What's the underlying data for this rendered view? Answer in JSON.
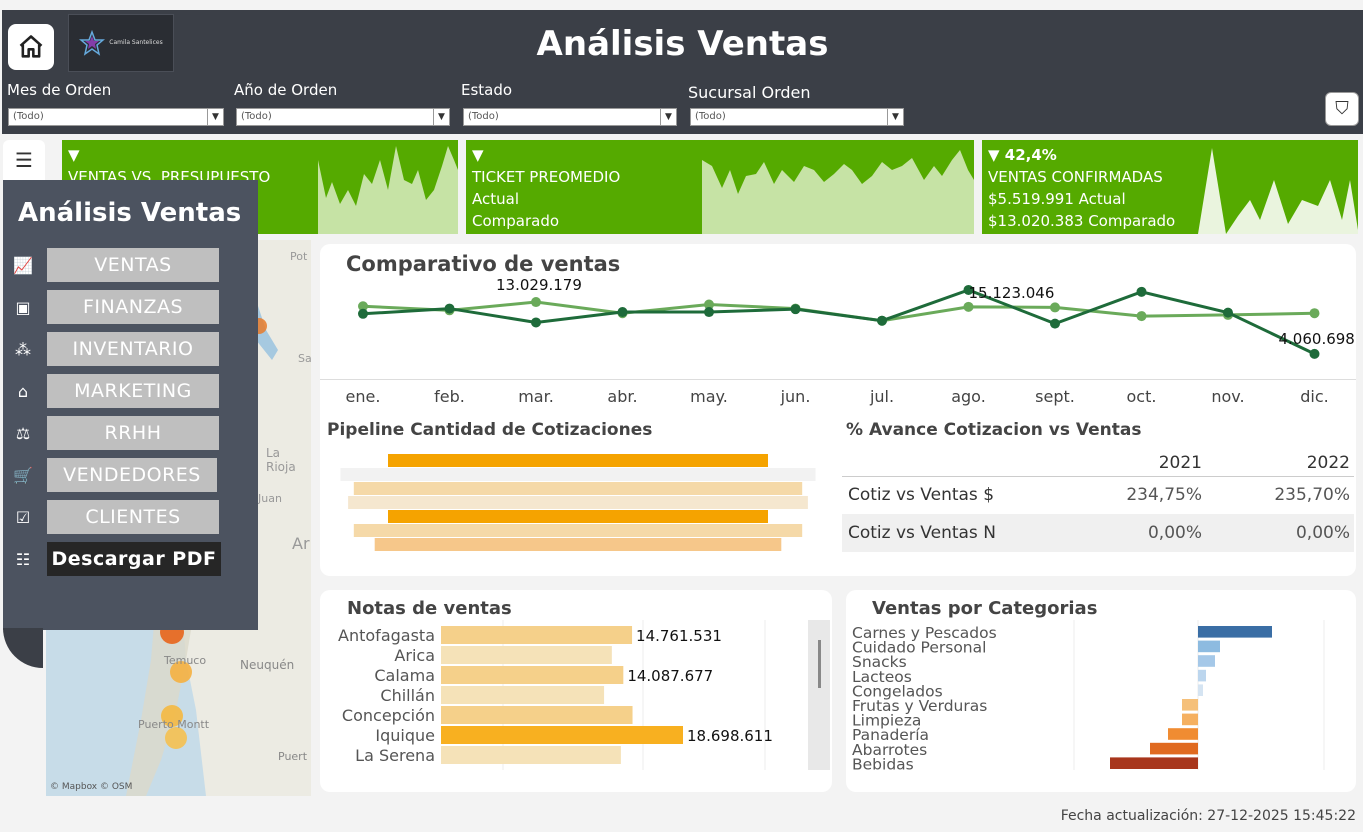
{
  "header": {
    "title": "Análisis Ventas",
    "logo_text": "Camila Santelices"
  },
  "filters": [
    {
      "label": "Mes de Orden",
      "value": "(Todo)"
    },
    {
      "label": "Año de Orden",
      "value": "(Todo)"
    },
    {
      "label": "Estado",
      "value": "(Todo)"
    },
    {
      "label": "Sucursal Orden",
      "value": "(Todo)"
    }
  ],
  "kpis": [
    {
      "arrow": "▼",
      "title": "VENTAS VS. PRESUPUESTO",
      "line2": "",
      "line3": ""
    },
    {
      "arrow": "▼",
      "title": "TICKET PREOMEDIO",
      "line2": "Actual",
      "line3": "Comparado"
    },
    {
      "arrow": "▼ 42,4%",
      "title": "VENTAS CONFIRMADAS",
      "line2": "$5.519.991 Actual",
      "line3": "$13.020.383 Comparado"
    }
  ],
  "side_menu": {
    "title": "Análisis Ventas",
    "items": [
      {
        "label": "VENTAS",
        "icon": "line-chart-icon"
      },
      {
        "label": "FINANZAS",
        "icon": "cash-icon"
      },
      {
        "label": "INVENTARIO",
        "icon": "boxes-icon"
      },
      {
        "label": "MARKETING",
        "icon": "store-icon"
      },
      {
        "label": "RRHH",
        "icon": "scale-icon"
      },
      {
        "label": "VENDEDORES",
        "icon": "cart-icon"
      },
      {
        "label": "CLIENTES",
        "icon": "checkbox-icon"
      },
      {
        "label": "Descargar PDF",
        "icon": "list-icon"
      }
    ]
  },
  "map": {
    "labels": [
      "Pot",
      "Sa",
      "La Rioja",
      "Juan",
      "Ar",
      "Temuco",
      "Neuquén",
      "Puerto Montt",
      "Puert"
    ],
    "attribution": "© Mapbox © OSM"
  },
  "comparativo": {
    "title": "Comparativo de ventas",
    "chart_data": {
      "type": "line",
      "categories": [
        "ene.",
        "feb.",
        "mar.",
        "abr.",
        "may.",
        "jun.",
        "jul.",
        "ago.",
        "sept.",
        "oct.",
        "nov.",
        "dic."
      ],
      "series": [
        {
          "values": [
            11000000,
            11900000,
            9500000,
            11300000,
            11300000,
            11800000,
            9800000,
            15123046,
            9300000,
            14800000,
            11200000,
            4060698
          ]
        },
        {
          "values": [
            12300000,
            11600000,
            13029179,
            11100000,
            12600000,
            11900000,
            9800000,
            12200000,
            12100000,
            10600000,
            10800000,
            11100000
          ]
        }
      ],
      "data_labels": [
        "13.029.179",
        "15.123.046",
        "4.060.698"
      ],
      "colors": [
        "#1e6b3a",
        "#6aaa5a"
      ]
    }
  },
  "pipeline": {
    "title": "Pipeline Cantidad de Cotizaciones",
    "chart_data": {
      "type": "bar",
      "values": [
        100,
        125,
        118,
        121,
        100,
        118,
        107
      ],
      "colors": [
        "#f5a300",
        "#f2f2f2",
        "#f5d9a8",
        "#f5e7cf",
        "#f5a300",
        "#f5d9a8",
        "#f6c78a"
      ]
    }
  },
  "avance": {
    "title": "% Avance Cotizacion vs Ventas",
    "columns": [
      "2021",
      "2022"
    ],
    "rows": [
      {
        "label": "Cotiz vs Ventas $",
        "v2021": "234,75%",
        "v2022": "235,70%"
      },
      {
        "label": "Cotiz vs Ventas N",
        "v2021": "0,00%",
        "v2022": "0,00%"
      }
    ]
  },
  "notas": {
    "title": "Notas de ventas",
    "chart_data": {
      "type": "bar",
      "categories": [
        "Antofagasta",
        "Arica",
        "Calama",
        "Chillán",
        "Concepción",
        "Iquique",
        "La Serena"
      ],
      "values": [
        14761531,
        13200000,
        14087677,
        12600000,
        14800000,
        18698611,
        13900000
      ],
      "data_labels": [
        "14.761.531",
        "",
        "14.087.677",
        "",
        "",
        "18.698.611",
        ""
      ],
      "colors": [
        "#f5d08a",
        "#f5e2b8",
        "#f5d08a",
        "#f5e2b8",
        "#f5d08a",
        "#f8b020",
        "#f5e2b8"
      ]
    }
  },
  "categorias": {
    "title": "Ventas por Categorias",
    "chart_data": {
      "type": "bar",
      "categories": [
        "Carnes y Pescados",
        "Cuidado Personal",
        "Snacks",
        "Lacteos",
        "Congelados",
        "Frutas y Verduras",
        "Limpieza",
        "Panadería",
        "Abarrotes",
        "Bebidas"
      ],
      "values": [
        74,
        22,
        17,
        8,
        5,
        -16,
        -16,
        -30,
        -48,
        -88
      ],
      "colors": [
        "#3a6ea5",
        "#8dbbe0",
        "#a5c8e8",
        "#bcd6ee",
        "#d5e4f2",
        "#f5c07a",
        "#f5b060",
        "#f08c32",
        "#e06a20",
        "#a8361c"
      ]
    }
  },
  "footer": {
    "updated": "Fecha actualización: 27-12-2025 15:45:22"
  }
}
